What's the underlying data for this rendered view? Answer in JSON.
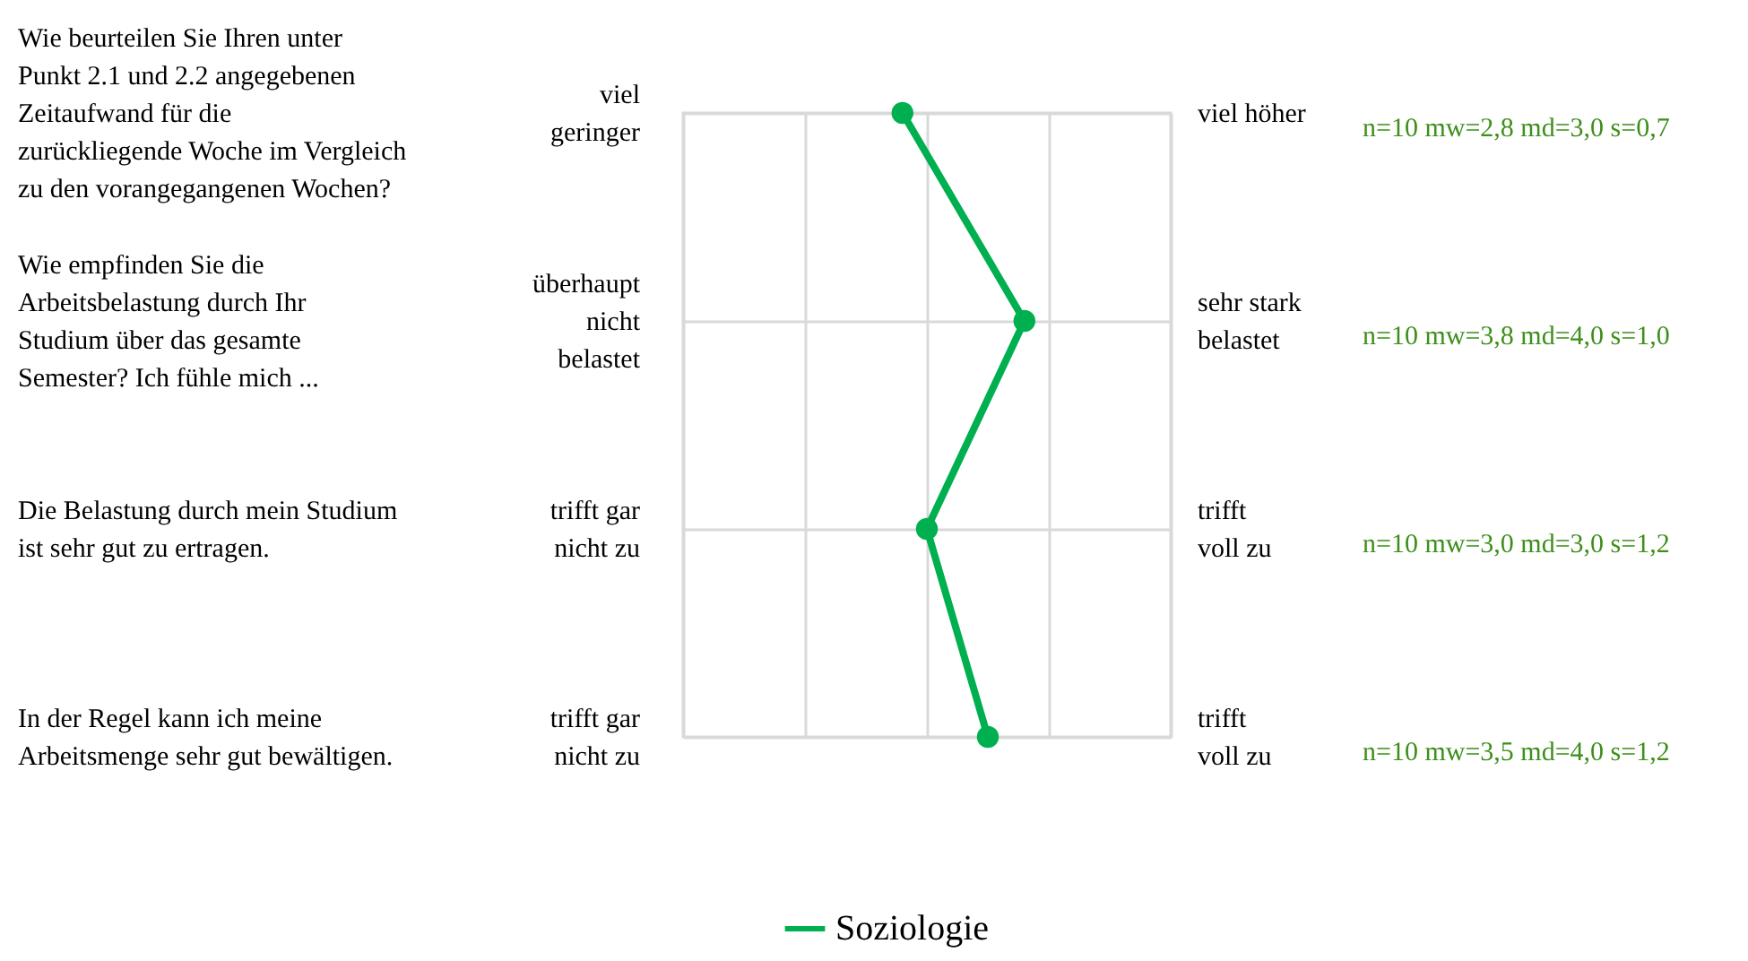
{
  "chart_data": {
    "type": "line",
    "orientation": "horizontal",
    "categories": [
      "Wie beurteilen Sie Ihren unter Punkt 2.1 und 2.2 angegebenen Zeitaufwand für die zurückliegende Woche im Vergleich zu den vorangegangenen Wochen?",
      "Wie empfinden Sie die Arbeitsbelastung durch Ihr Studium über das gesamte Semester? Ich fühle mich ...",
      "Die Belastung durch mein Studium ist sehr gut zu ertragen.",
      "In der Regel kann ich meine Arbeitsmenge sehr gut bewältigen."
    ],
    "y_categories": [
      "viel geringer",
      "überhaupt nicht belastet",
      "trifft gar nicht zu",
      "trifft gar nicht zu"
    ],
    "y2_categories": [
      "viel höher",
      "sehr stark belastet",
      "trifft voll zu",
      "trifft voll zu"
    ],
    "series": [
      {
        "name": "Soziologie",
        "color": "#00b050",
        "values": [
          2.8,
          3.8,
          3.0,
          3.5
        ],
        "value_labels": [
          "n=10 mw=2,8 md=3,0 s=0,7",
          "n=10 mw=3,8 md=4,0 s=1,0",
          "n=10 mw=3,0 md=3,0 s=1,2",
          "n=10 mw=3,5 md=4,0 s=1,2"
        ]
      }
    ],
    "xlim": [
      1,
      5
    ],
    "xticks": [
      {
        "value": 1,
        "label": null
      },
      {
        "value": 2,
        "label": null
      },
      {
        "value": 3,
        "label": null
      },
      {
        "value": 4,
        "label": null
      },
      {
        "value": 5,
        "label": null
      }
    ],
    "marker": "circle",
    "line_style": "solid",
    "grid": true,
    "legend": "bottom"
  }
}
